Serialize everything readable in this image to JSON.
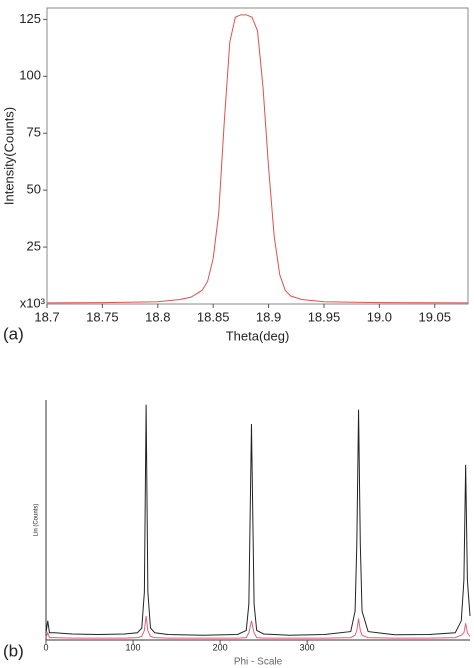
{
  "chart_data": [
    {
      "type": "line",
      "panel_label": "(a)",
      "x_label": "Theta(deg)",
      "y_label": "Intensity(Counts)",
      "y_multiplier": "x10³",
      "x": [
        18.7,
        18.75,
        18.8,
        18.82,
        18.83,
        18.84,
        18.845,
        18.85,
        18.855,
        18.86,
        18.865,
        18.87,
        18.875,
        18.88,
        18.885,
        18.89,
        18.895,
        18.9,
        18.905,
        18.91,
        18.915,
        18.92,
        18.93,
        18.95,
        19.0,
        19.08
      ],
      "series": [
        {
          "color": "#d9534f",
          "values": [
            0.5,
            0.6,
            1,
            2,
            3,
            6,
            10,
            20,
            40,
            80,
            115,
            126,
            127,
            127,
            126,
            120,
            95,
            60,
            30,
            13,
            6,
            3.5,
            2,
            1,
            0.6,
            0.5
          ]
        }
      ],
      "xlim": [
        18.7,
        19.08
      ],
      "xticks": [
        18.7,
        18.75,
        18.8,
        18.85,
        18.9,
        18.95,
        {
          "value": 19,
          "label": "19.0"
        },
        19.05
      ],
      "ylim": [
        0,
        130
      ],
      "yticks": [
        25,
        50,
        75,
        100,
        125
      ]
    },
    {
      "type": "line",
      "panel_label": "(b)",
      "x_label": "Phi - Scale",
      "y_label": "Lin (Counts)",
      "x": [
        0,
        2,
        4,
        10,
        30,
        60,
        90,
        105,
        110,
        113,
        115,
        117,
        120,
        125,
        140,
        180,
        220,
        230,
        233,
        236,
        239,
        242,
        250,
        280,
        320,
        350,
        355,
        357,
        359,
        361,
        363,
        370,
        400,
        440,
        470,
        477,
        480,
        482,
        484,
        487
      ],
      "series": [
        {
          "color": "#222222",
          "values": [
            3,
            8,
            3,
            3,
            2.5,
            2.3,
            2.5,
            3,
            5,
            20,
            98,
            20,
            5,
            3,
            2.3,
            2,
            2.3,
            4,
            15,
            90,
            15,
            4,
            2.5,
            2,
            2.3,
            3.5,
            12,
            40,
            96,
            40,
            12,
            3.5,
            2.2,
            2.3,
            3,
            8,
            25,
            73,
            25,
            10
          ]
        },
        {
          "color": "#e0607a",
          "values": [
            1,
            3,
            1,
            1,
            0.8,
            0.8,
            0.8,
            1,
            1.5,
            4,
            10,
            4,
            1.5,
            1,
            0.8,
            0.8,
            0.8,
            1,
            3,
            8,
            3,
            1,
            0.8,
            0.8,
            0.8,
            1,
            2,
            4,
            9,
            4,
            2,
            1,
            0.8,
            0.8,
            1,
            2,
            3,
            7,
            3,
            1.5
          ]
        }
      ],
      "xlim": [
        0,
        487
      ],
      "xticks": [
        0,
        100,
        200,
        300
      ],
      "ylim": [
        0,
        100
      ]
    }
  ]
}
